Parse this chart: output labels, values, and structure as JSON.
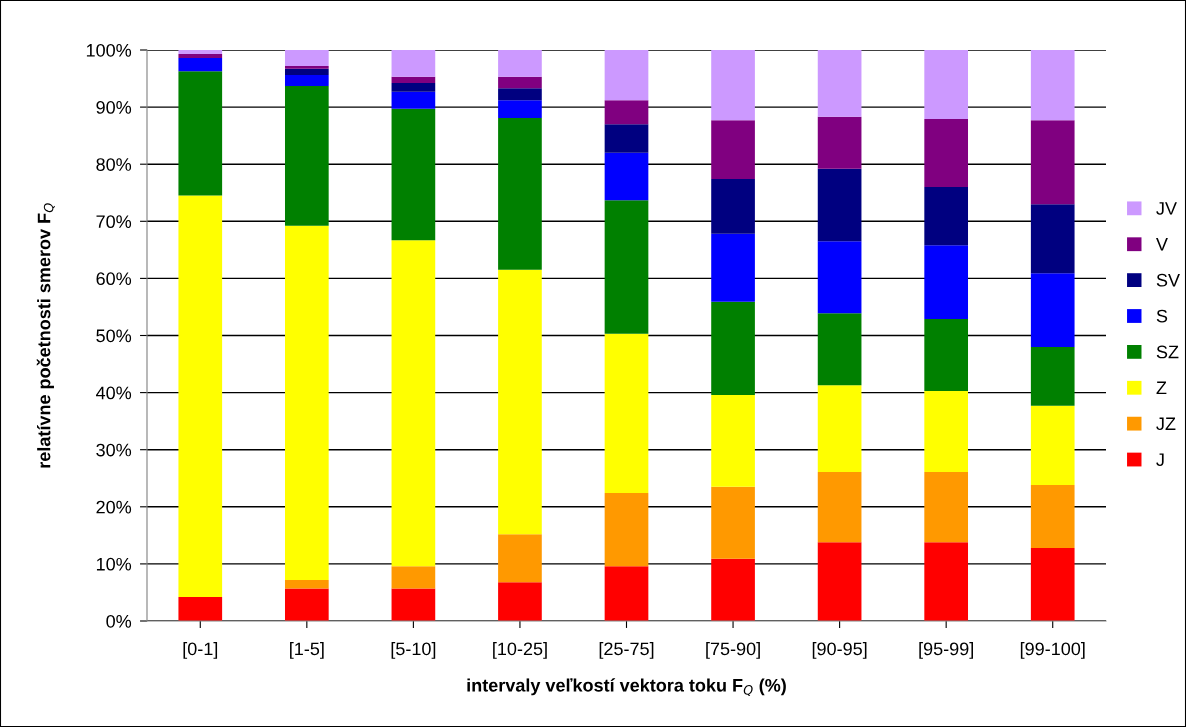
{
  "chart_data": {
    "type": "bar",
    "stacked": true,
    "categories": [
      "[0-1]",
      "[1-5]",
      "[5-10]",
      "[10-25]",
      "[25-75]",
      "[75-90]",
      "[90-95]",
      "[95-99]",
      "[99-100]"
    ],
    "series": [
      {
        "name": "J",
        "color": "#ff0000",
        "values": [
          4.2,
          5.7,
          5.7,
          6.8,
          9.6,
          10.9,
          13.8,
          13.8,
          12.8
        ]
      },
      {
        "name": "JZ",
        "color": "#ff9900",
        "values": [
          0,
          1.5,
          3.9,
          8.4,
          12.8,
          12.6,
          12.3,
          12.3,
          11.0
        ]
      },
      {
        "name": "Z",
        "color": "#ffff00",
        "values": [
          70.3,
          62.0,
          57.1,
          46.3,
          27.9,
          16.1,
          15.2,
          14.2,
          13.9
        ]
      },
      {
        "name": "SZ",
        "color": "#008000",
        "values": [
          21.8,
          24.5,
          23.0,
          26.6,
          23.4,
          16.3,
          12.6,
          12.6,
          10.3
        ]
      },
      {
        "name": "S",
        "color": "#0000ff",
        "values": [
          2.3,
          1.9,
          3.0,
          3.1,
          8.3,
          11.9,
          12.6,
          12.9,
          12.9
        ]
      },
      {
        "name": "SV",
        "color": "#000080",
        "values": [
          0,
          1.1,
          1.5,
          2.1,
          5.0,
          9.6,
          12.7,
          10.2,
          12.1
        ]
      },
      {
        "name": "V",
        "color": "#800080",
        "values": [
          0.7,
          0.5,
          1.1,
          2.0,
          4.2,
          10.3,
          9.1,
          11.9,
          14.7
        ]
      },
      {
        "name": "JV",
        "color": "#cc99ff",
        "values": [
          0.7,
          2.8,
          4.7,
          4.7,
          8.8,
          12.3,
          11.7,
          12.1,
          12.3
        ]
      }
    ],
    "ylim": [
      0,
      100
    ],
    "yticks": [
      {
        "value": 0,
        "label": "0%"
      },
      {
        "value": 10,
        "label": "10%"
      },
      {
        "value": 20,
        "label": "20%"
      },
      {
        "value": 30,
        "label": "30%"
      },
      {
        "value": 40,
        "label": "40%"
      },
      {
        "value": 50,
        "label": "50%"
      },
      {
        "value": 60,
        "label": "60%"
      },
      {
        "value": 70,
        "label": "70%"
      },
      {
        "value": 80,
        "label": "80%"
      },
      {
        "value": 90,
        "label": "90%"
      },
      {
        "value": 100,
        "label": "100%"
      }
    ],
    "xlabel": "intervaly veľkostí vektora toku F$_{Q}$ (%)",
    "ylabel": "relatívne početnosti smerov F$_{Q}$",
    "grid": "y",
    "legend": "right"
  }
}
